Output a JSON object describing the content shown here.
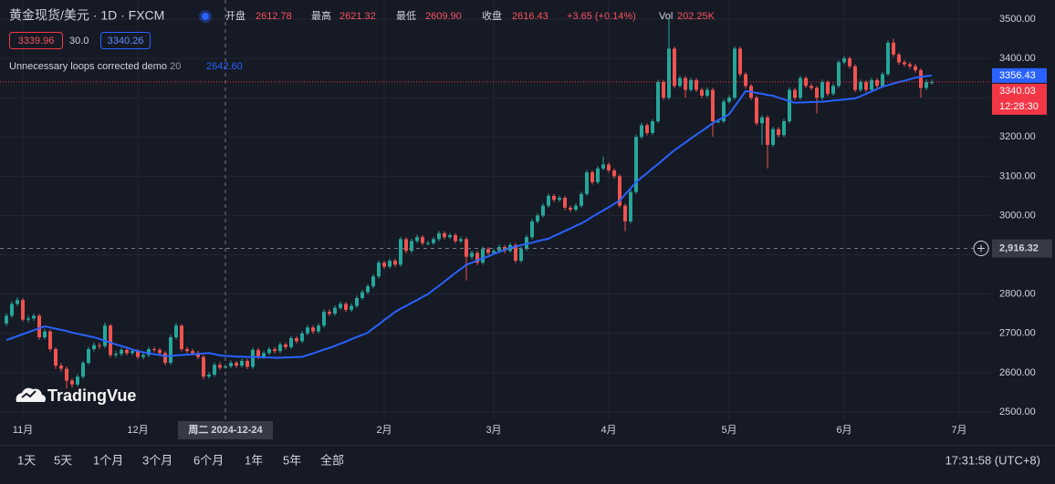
{
  "header": {
    "symbol": "黄金现货/美元 · 1D · FXCM",
    "open_label": "开盘",
    "open": "2612.78",
    "high_label": "最高",
    "high": "2621.32",
    "low_label": "最低",
    "low": "2609.90",
    "close_label": "收盘",
    "close": "2616.43",
    "change": "+3.65 (+0.14%)",
    "vol_label": "Vol",
    "vol": "202.25K"
  },
  "legend": {
    "box1": "3339.96",
    "mid": "30.0",
    "box2": "3340.26",
    "indicator_value": "2642.60"
  },
  "watermark": "TradingVue",
  "footer": {
    "ranges": [
      "1天",
      "5天",
      "1个月",
      "3个月",
      "6个月",
      "1年",
      "5年",
      "全部"
    ],
    "time": "17:31:58 (UTC+8)"
  },
  "chart_data": {
    "type": "candlestick",
    "categories": [
      null,
      null,
      null,
      "11月",
      null,
      null,
      null,
      null,
      null,
      null,
      null,
      null,
      null,
      null,
      null,
      null,
      null,
      null,
      null,
      null,
      null,
      null,
      null,
      null,
      "12月",
      null,
      null,
      null,
      null,
      null,
      null,
      null,
      null,
      null,
      null,
      null,
      null,
      null,
      null,
      null,
      "周二 2024-12-24",
      null,
      null,
      null,
      null,
      null,
      null,
      null,
      null,
      null,
      null,
      null,
      null,
      null,
      null,
      null,
      null,
      null,
      null,
      null,
      null,
      null,
      null,
      null,
      null,
      null,
      null,
      null,
      null,
      "2月",
      null,
      null,
      null,
      null,
      null,
      null,
      null,
      null,
      null,
      null,
      null,
      null,
      null,
      null,
      null,
      null,
      null,
      null,
      null,
      "3月",
      null,
      null,
      null,
      null,
      null,
      null,
      null,
      null,
      null,
      null,
      null,
      null,
      null,
      null,
      null,
      null,
      null,
      null,
      null,
      null,
      "4月",
      null,
      null,
      null,
      null,
      null,
      null,
      null,
      null,
      null,
      null,
      null,
      null,
      null,
      null,
      null,
      null,
      null,
      null,
      null,
      null,
      null,
      "5月",
      null,
      null,
      null,
      null,
      null,
      null,
      null,
      null,
      null,
      null,
      null,
      null,
      null,
      null,
      null,
      null,
      null,
      null,
      null,
      null,
      "6月",
      null,
      null,
      null,
      null,
      null,
      null,
      null,
      null,
      null,
      null,
      null,
      null,
      null,
      null,
      null,
      null,
      null,
      null,
      null,
      null,
      "7月"
    ],
    "open": [
      2725,
      2745,
      2775,
      2785,
      2735,
      2738,
      2745,
      2690,
      2705,
      2660,
      2618,
      2610,
      2580,
      2570,
      2590,
      2625,
      2660,
      2670,
      2668,
      2720,
      2645,
      2648,
      2658,
      2650,
      2655,
      2640,
      2645,
      2660,
      2658,
      2650,
      2625,
      2690,
      2720,
      2660,
      2655,
      2650,
      2640,
      2590,
      2595,
      2620,
      2612.78,
      2616.43,
      2625,
      2618,
      2630,
      2615,
      2658,
      2640,
      2650,
      2660,
      2655,
      2672,
      2665,
      2688,
      2680,
      2700,
      2715,
      2705,
      2720,
      2755,
      2750,
      2765,
      2775,
      2760,
      2770,
      2790,
      2805,
      2820,
      2845,
      2880,
      2870,
      2885,
      2875,
      2940,
      2910,
      2935,
      2945,
      2930,
      2930,
      2940,
      2955,
      2945,
      2950,
      2935,
      2940,
      2895,
      2905,
      2880,
      2915,
      2905,
      2910,
      2920,
      2910,
      2925,
      2885,
      2915,
      2945,
      2985,
      3000,
      3025,
      3050,
      3040,
      3045,
      3020,
      3015,
      3025,
      3055,
      3110,
      3085,
      3120,
      3130,
      3115,
      3100,
      3025,
      2985,
      3060,
      3200,
      3230,
      3210,
      3240,
      3340,
      3300,
      3425,
      3330,
      3350,
      3320,
      3345,
      3320,
      3305,
      3320,
      3240,
      3240,
      3290,
      3300,
      3425,
      3360,
      3330,
      3300,
      3235,
      3250,
      3180,
      3220,
      3205,
      3240,
      3320,
      3300,
      3350,
      3330,
      3325,
      3300,
      3340,
      3310,
      3330,
      3390,
      3400,
      3380,
      3320,
      3340,
      3320,
      3345,
      3330,
      3360,
      3440,
      3410,
      3390,
      3385,
      3380,
      3370,
      3325,
      3340,
      null,
      null,
      null,
      null,
      null
    ],
    "high": [
      2751,
      2782,
      2792,
      2790,
      2745,
      2750,
      2750,
      2712,
      2710,
      2665,
      2625,
      2616,
      2586,
      2596,
      2630,
      2666,
      2677,
      2676,
      2728,
      2724,
      2655,
      2664,
      2663,
      2661,
      2660,
      2651,
      2666,
      2666,
      2663,
      2655,
      2696,
      2727,
      2724,
      2666,
      2661,
      2656,
      2645,
      2601,
      2626,
      2627,
      2621.32,
      2631,
      2630,
      2636,
      2635,
      2664,
      2663,
      2656,
      2666,
      2666,
      2678,
      2677,
      2694,
      2693,
      2706,
      2721,
      2720,
      2726,
      2761,
      2761,
      2771,
      2781,
      2780,
      2776,
      2796,
      2811,
      2826,
      2851,
      2886,
      2885,
      2891,
      2890,
      2946,
      2945,
      2941,
      2951,
      2950,
      2936,
      2946,
      2961,
      2960,
      2956,
      2955,
      2946,
      2945,
      2911,
      2910,
      2921,
      2920,
      2916,
      2926,
      2925,
      2931,
      2930,
      2921,
      2951,
      2991,
      3006,
      3031,
      3056,
      3055,
      3051,
      3050,
      3025,
      3031,
      3061,
      3116,
      3115,
      3126,
      3150,
      3135,
      3120,
      3105,
      3030,
      3066,
      3206,
      3236,
      3235,
      3246,
      3346,
      3345,
      3500,
      3430,
      3356,
      3355,
      3351,
      3350,
      3325,
      3326,
      3325,
      3246,
      3296,
      3306,
      3431,
      3430,
      3365,
      3335,
      3305,
      3256,
      3255,
      3226,
      3225,
      3246,
      3326,
      3325,
      3356,
      3355,
      3336,
      3330,
      3346,
      3345,
      3336,
      3396,
      3406,
      3405,
      3385,
      3346,
      3345,
      3351,
      3350,
      3366,
      3446,
      3450,
      3415,
      3396,
      3391,
      3386,
      3375,
      3346,
      3346,
      null,
      null,
      null,
      null,
      null
    ],
    "low": [
      2719,
      2740,
      2770,
      2730,
      2728,
      2732,
      2684,
      2685,
      2654,
      2610,
      2603,
      2560,
      2562,
      2565,
      2585,
      2620,
      2654,
      2660,
      2662,
      2638,
      2638,
      2642,
      2644,
      2645,
      2634,
      2634,
      2640,
      2652,
      2644,
      2619,
      2620,
      2685,
      2654,
      2649,
      2644,
      2634,
      2583,
      2585,
      2590,
      2607,
      2609.9,
      2611,
      2612,
      2613,
      2609,
      2610,
      2634,
      2635,
      2645,
      2649,
      2650,
      2659,
      2660,
      2674,
      2675,
      2695,
      2699,
      2700,
      2715,
      2744,
      2745,
      2760,
      2754,
      2755,
      2765,
      2785,
      2800,
      2815,
      2840,
      2864,
      2865,
      2869,
      2870,
      2904,
      2905,
      2930,
      2924,
      2924,
      2925,
      2935,
      2939,
      2940,
      2929,
      2930,
      2835,
      2888,
      2874,
      2875,
      2899,
      2900,
      2905,
      2904,
      2905,
      2879,
      2880,
      2910,
      2940,
      2980,
      2995,
      3020,
      3034,
      3035,
      3014,
      3009,
      3010,
      3020,
      3050,
      3079,
      3080,
      3115,
      3109,
      3094,
      3019,
      2960,
      2980,
      3055,
      3195,
      3204,
      3205,
      3235,
      3294,
      3295,
      3324,
      3325,
      3300,
      3315,
      3314,
      3299,
      3300,
      3200,
      3234,
      3235,
      3285,
      3295,
      3354,
      3324,
      3294,
      3229,
      3180,
      3120,
      3175,
      3199,
      3200,
      3235,
      3294,
      3295,
      3324,
      3319,
      3260,
      3295,
      3304,
      3305,
      3325,
      3385,
      3374,
      3314,
      3315,
      3314,
      3315,
      3324,
      3325,
      3355,
      3404,
      3384,
      3379,
      3374,
      3364,
      3300,
      3319,
      3333,
      null,
      null,
      null,
      null,
      null
    ],
    "close": [
      2745,
      2775,
      2785,
      2735,
      2738,
      2745,
      2690,
      2705,
      2660,
      2618,
      2610,
      2580,
      2570,
      2590,
      2625,
      2660,
      2670,
      2668,
      2720,
      2645,
      2648,
      2658,
      2650,
      2655,
      2640,
      2645,
      2660,
      2658,
      2650,
      2625,
      2690,
      2720,
      2660,
      2655,
      2650,
      2640,
      2590,
      2595,
      2620,
      2612.78,
      2616.43,
      2625,
      2618,
      2630,
      2615,
      2658,
      2640,
      2650,
      2660,
      2655,
      2672,
      2665,
      2688,
      2680,
      2700,
      2715,
      2705,
      2720,
      2755,
      2750,
      2765,
      2775,
      2760,
      2770,
      2790,
      2805,
      2820,
      2845,
      2880,
      2870,
      2885,
      2875,
      2940,
      2910,
      2935,
      2945,
      2930,
      2930,
      2940,
      2955,
      2945,
      2950,
      2935,
      2940,
      2895,
      2905,
      2880,
      2915,
      2905,
      2910,
      2920,
      2910,
      2925,
      2885,
      2915,
      2945,
      2985,
      3000,
      3025,
      3050,
      3040,
      3045,
      3020,
      3015,
      3025,
      3055,
      3110,
      3085,
      3120,
      3130,
      3115,
      3100,
      3025,
      2985,
      3060,
      3200,
      3230,
      3210,
      3240,
      3340,
      3300,
      3425,
      3330,
      3350,
      3320,
      3345,
      3320,
      3305,
      3320,
      3240,
      3240,
      3290,
      3300,
      3425,
      3360,
      3330,
      3300,
      3235,
      3250,
      3180,
      3220,
      3205,
      3240,
      3320,
      3300,
      3350,
      3330,
      3325,
      3300,
      3340,
      3310,
      3330,
      3390,
      3400,
      3380,
      3320,
      3340,
      3320,
      3345,
      3330,
      3360,
      3440,
      3410,
      3390,
      3385,
      3380,
      3370,
      3325,
      3340,
      3340.03,
      null,
      null,
      null,
      null,
      null
    ],
    "up_color": "#26a69a",
    "down_color": "#ef5350",
    "series": [
      {
        "name": "Unnecessary loops corrected demo",
        "period": 20,
        "color": "#2962ff",
        "values": [
          2683,
          2688,
          2693,
          2698,
          2703,
          2708,
          2713,
          2718,
          2715,
          2712,
          2709,
          2706,
          2702,
          2699,
          2696,
          2693,
          2690,
          2686,
          2681,
          2677,
          2672,
          2668,
          2664,
          2659,
          2655,
          2652,
          2650,
          2647,
          2645,
          2642,
          2643,
          2644,
          2645,
          2646,
          2647,
          2648,
          2649,
          2650,
          2647,
          2644,
          2642.6,
          2642,
          2641,
          2641,
          2640,
          2640,
          2640,
          2639,
          2639,
          2638,
          2638,
          2639,
          2639,
          2640,
          2640,
          2645,
          2649,
          2654,
          2659,
          2663,
          2668,
          2674,
          2679,
          2685,
          2691,
          2696,
          2702,
          2713,
          2723,
          2734,
          2744,
          2755,
          2763,
          2770,
          2778,
          2785,
          2793,
          2800,
          2811,
          2821,
          2832,
          2843,
          2854,
          2864,
          2875,
          2880,
          2886,
          2891,
          2896,
          2902,
          2907,
          2913,
          2918,
          2921,
          2925,
          2928,
          2931,
          2935,
          2938,
          2941,
          2948,
          2954,
          2961,
          2967,
          2974,
          2980,
          2988,
          2997,
          3005,
          3013,
          3021,
          3030,
          3038,
          3054,
          3069,
          3085,
          3097,
          3108,
          3120,
          3131,
          3143,
          3155,
          3166,
          3176,
          3186,
          3196,
          3206,
          3215,
          3225,
          3235,
          3243,
          3250,
          3258,
          3278,
          3297,
          3317,
          3315,
          3312,
          3310,
          3307,
          3305,
          3300,
          3296,
          3291,
          3287,
          3288,
          3288,
          3289,
          3289,
          3290,
          3291,
          3293,
          3294,
          3295,
          3297,
          3298,
          3304,
          3310,
          3316,
          3322,
          3328,
          3332,
          3336,
          3340,
          3343,
          3347,
          3351,
          3353,
          3355,
          3356.43,
          null,
          null,
          null,
          null,
          null
        ]
      }
    ],
    "ylim": [
      2481.4,
      3548.7
    ],
    "yticks": [
      {
        "value": 2500,
        "label": "2500.00"
      },
      {
        "value": 2600,
        "label": "2600.00"
      },
      {
        "value": 2700,
        "label": "2700.00"
      },
      {
        "value": 2800,
        "label": "2800.00"
      },
      {
        "value": 2900,
        "label": "2900.00"
      },
      {
        "value": 3000,
        "label": "3000.00"
      },
      {
        "value": 3100,
        "label": "3100.00"
      },
      {
        "value": 3200,
        "label": "3200.00"
      },
      {
        "value": 3300,
        "label": "3300.00"
      },
      {
        "value": 3400,
        "label": "3400.00"
      },
      {
        "value": 3500,
        "label": "3500.00"
      }
    ],
    "grid": true,
    "price_tags": [
      {
        "value": 3356.43,
        "color": "#2962ff"
      },
      {
        "value": 3340.03,
        "sub": "12:28:30",
        "color": "#f23645"
      }
    ],
    "crosshair": {
      "value": 2916.32,
      "label": "2,916.32"
    }
  }
}
